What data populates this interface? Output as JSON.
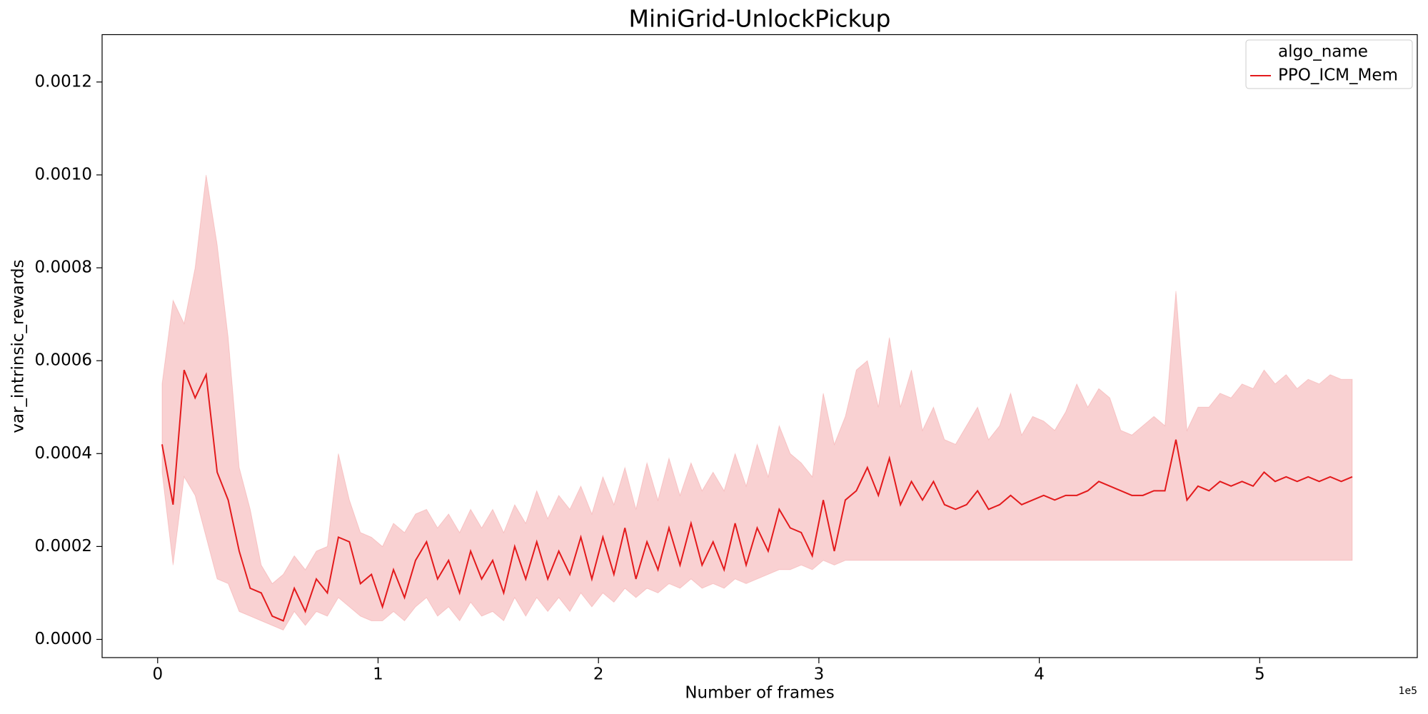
{
  "chart_data": {
    "type": "line",
    "title": "MiniGrid-UnlockPickup",
    "xlabel": "Number of frames",
    "ylabel": "var_intrinsic_rewards",
    "x_offset_label": "1e5",
    "legend_title": "algo_name",
    "legend": "upper right",
    "grid": false,
    "xlim": [
      -25200,
      571500
    ],
    "ylim": [
      -3.92e-05,
      0.001302
    ],
    "xticks": [
      0,
      {
        "value": 100000,
        "label": "1"
      },
      {
        "value": 200000,
        "label": "2"
      },
      {
        "value": 300000,
        "label": "3"
      },
      {
        "value": 400000,
        "label": "4"
      },
      {
        "value": 500000,
        "label": "5"
      }
    ],
    "yticks": [
      {
        "value": 0,
        "label": "0.0000"
      },
      {
        "value": 0.0002,
        "label": "0.0002"
      },
      {
        "value": 0.0004,
        "label": "0.0004"
      },
      {
        "value": 0.0006,
        "label": "0.0006"
      },
      {
        "value": 0.0008,
        "label": "0.0008"
      },
      {
        "value": 0.001,
        "label": "0.0010"
      },
      {
        "value": 0.0012,
        "label": "0.0012"
      }
    ],
    "x": [
      2000,
      7000,
      12000,
      17000,
      22000,
      27000,
      32000,
      37000,
      42000,
      47000,
      52000,
      57000,
      62000,
      67000,
      72000,
      77000,
      82000,
      87000,
      92000,
      97000,
      102000,
      107000,
      112000,
      117000,
      122000,
      127000,
      132000,
      137000,
      142000,
      147000,
      152000,
      157000,
      162000,
      167000,
      172000,
      177000,
      182000,
      187000,
      192000,
      197000,
      202000,
      207000,
      212000,
      217000,
      222000,
      227000,
      232000,
      237000,
      242000,
      247000,
      252000,
      257000,
      262000,
      267000,
      272000,
      277000,
      282000,
      287000,
      292000,
      297000,
      302000,
      307000,
      312000,
      317000,
      322000,
      327000,
      332000,
      337000,
      342000,
      347000,
      352000,
      357000,
      362000,
      367000,
      372000,
      377000,
      382000,
      387000,
      392000,
      397000,
      402000,
      407000,
      412000,
      417000,
      422000,
      427000,
      432000,
      437000,
      442000,
      447000,
      452000,
      457000,
      462000,
      467000,
      472000,
      477000,
      482000,
      487000,
      492000,
      497000,
      502000,
      507000,
      512000,
      517000,
      522000,
      527000,
      532000,
      537000,
      542000
    ],
    "series": [
      {
        "name": "PPO_ICM_Mem",
        "color": "#e31a1c",
        "values": [
          0.00042,
          0.00029,
          0.00058,
          0.00052,
          0.00057,
          0.00036,
          0.0003,
          0.00019,
          0.00011,
          0.0001,
          5e-05,
          4e-05,
          0.00011,
          6e-05,
          0.00013,
          0.0001,
          0.00022,
          0.00021,
          0.00012,
          0.00014,
          7e-05,
          0.00015,
          9e-05,
          0.00017,
          0.00021,
          0.00013,
          0.00017,
          0.0001,
          0.00019,
          0.00013,
          0.00017,
          0.0001,
          0.0002,
          0.00013,
          0.00021,
          0.00013,
          0.00019,
          0.00014,
          0.00022,
          0.00013,
          0.00022,
          0.00014,
          0.00024,
          0.00013,
          0.00021,
          0.00015,
          0.00024,
          0.00016,
          0.00025,
          0.00016,
          0.00021,
          0.00015,
          0.00025,
          0.00016,
          0.00024,
          0.00019,
          0.00028,
          0.00024,
          0.00023,
          0.00018,
          0.0003,
          0.00019,
          0.0003,
          0.00032,
          0.00037,
          0.00031,
          0.00039,
          0.00029,
          0.00034,
          0.0003,
          0.00034,
          0.00029,
          0.00028,
          0.00029,
          0.00032,
          0.00028,
          0.00029,
          0.00031,
          0.00029,
          0.0003,
          0.00031,
          0.0003,
          0.00031,
          0.00031,
          0.00032,
          0.00034,
          0.00033,
          0.00032,
          0.00031,
          0.00031,
          0.00032,
          0.00032,
          0.00043,
          0.0003,
          0.00033,
          0.00032,
          0.00034,
          0.00033,
          0.00034,
          0.00033,
          0.00036,
          0.00034,
          0.00035,
          0.00034,
          0.00035,
          0.00034,
          0.00035,
          0.00034,
          0.00035
        ],
        "lower": [
          0.00036,
          0.00016,
          0.00035,
          0.00031,
          0.00022,
          0.00013,
          0.00012,
          6e-05,
          5e-05,
          4e-05,
          3e-05,
          2e-05,
          6e-05,
          3e-05,
          6e-05,
          5e-05,
          9e-05,
          7e-05,
          5e-05,
          4e-05,
          4e-05,
          6e-05,
          4e-05,
          7e-05,
          9e-05,
          5e-05,
          7e-05,
          4e-05,
          8e-05,
          5e-05,
          6e-05,
          4e-05,
          9e-05,
          5e-05,
          9e-05,
          6e-05,
          9e-05,
          6e-05,
          0.0001,
          7e-05,
          0.0001,
          8e-05,
          0.00011,
          9e-05,
          0.00011,
          0.0001,
          0.00012,
          0.00011,
          0.00013,
          0.00011,
          0.00012,
          0.00011,
          0.00013,
          0.00012,
          0.00013,
          0.00014,
          0.00015,
          0.00015,
          0.00016,
          0.00015,
          0.00017,
          0.00016,
          0.00017,
          0.00017,
          0.00017,
          0.00017,
          0.00017,
          0.00017,
          0.00017,
          0.00017,
          0.00017,
          0.00017,
          0.00017,
          0.00017,
          0.00017,
          0.00017,
          0.00017,
          0.00017,
          0.00017,
          0.00017,
          0.00017,
          0.00017,
          0.00017,
          0.00017,
          0.00017,
          0.00017,
          0.00017,
          0.00017,
          0.00017,
          0.00017,
          0.00017,
          0.00017,
          0.00017,
          0.00017,
          0.00017,
          0.00017,
          0.00017,
          0.00017,
          0.00017,
          0.00017,
          0.00017,
          0.00017,
          0.00017,
          0.00017,
          0.00017,
          0.00017,
          0.00017,
          0.00017,
          0.00017
        ],
        "upper": [
          0.00055,
          0.00073,
          0.00068,
          0.0008,
          0.001,
          0.00085,
          0.00065,
          0.00037,
          0.00028,
          0.00016,
          0.00012,
          0.00014,
          0.00018,
          0.00015,
          0.00019,
          0.0002,
          0.0004,
          0.0003,
          0.00023,
          0.00022,
          0.0002,
          0.00025,
          0.00023,
          0.00027,
          0.00028,
          0.00024,
          0.00027,
          0.00023,
          0.00028,
          0.00024,
          0.00028,
          0.00023,
          0.00029,
          0.00025,
          0.00032,
          0.00026,
          0.00031,
          0.00028,
          0.00033,
          0.00027,
          0.00035,
          0.00029,
          0.00037,
          0.00028,
          0.00038,
          0.0003,
          0.00039,
          0.00031,
          0.00038,
          0.00032,
          0.00036,
          0.00032,
          0.0004,
          0.00033,
          0.00042,
          0.00035,
          0.00046,
          0.0004,
          0.00038,
          0.00035,
          0.00053,
          0.00042,
          0.00048,
          0.00058,
          0.0006,
          0.0005,
          0.00065,
          0.0005,
          0.00058,
          0.00045,
          0.0005,
          0.00043,
          0.00042,
          0.00046,
          0.0005,
          0.00043,
          0.00046,
          0.00053,
          0.00044,
          0.00048,
          0.00047,
          0.00045,
          0.00049,
          0.00055,
          0.0005,
          0.00054,
          0.00052,
          0.00045,
          0.00044,
          0.00046,
          0.00048,
          0.00046,
          0.00075,
          0.00045,
          0.0005,
          0.0005,
          0.00053,
          0.00052,
          0.00055,
          0.00054,
          0.00058,
          0.00055,
          0.00057,
          0.00054,
          0.00056,
          0.00055,
          0.00057,
          0.00056,
          0.00056
        ]
      }
    ]
  }
}
